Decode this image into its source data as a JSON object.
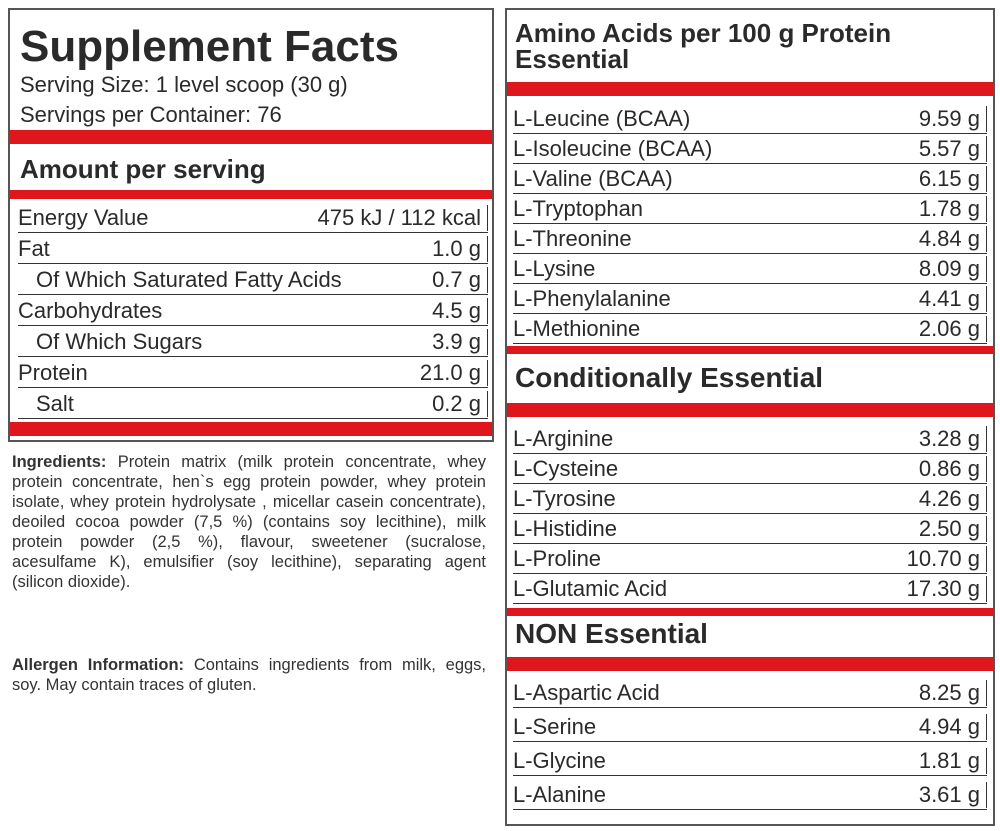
{
  "left": {
    "title": "Supplement Facts",
    "serving_size": "Serving Size: 1 level scoop (30 g)",
    "servings": "Servings per Container: 76",
    "amount_heading": "Amount per serving",
    "rows": [
      [
        "Energy Value",
        "475 kJ / 112 kcal"
      ],
      [
        "Fat",
        "1.0 g"
      ],
      [
        "Of Which Saturated Fatty Acids",
        "0.7 g"
      ],
      [
        "Carbohydrates",
        "4.5 g"
      ],
      [
        "Of Which Sugars",
        "3.9 g"
      ],
      [
        "Protein",
        "21.0 g"
      ],
      [
        "Salt",
        "0.2 g"
      ]
    ],
    "ingredients_label": "Ingredients:",
    "ingredients_text": "Protein matrix (milk protein concentrate, whey protein concentrate, hen`s egg protein powder, whey protein isolate, whey protein hydrolysate , micellar casein concentrate), deoiled cocoa powder (7,5 %) (contains soy lecithine), milk protein powder (2,5 %), flavour, sweetener (sucralose, acesulfame K), emulsifier (soy lecithine), separating agent (silicon dioxide).",
    "allergen_label": "Allergen Information:",
    "allergen_text": "Contains ingredients from milk, eggs, soy. May contain traces of gluten."
  },
  "right": {
    "title": "Amino Acids per 100 g Protein",
    "sections": [
      {
        "heading": "Essential",
        "rows": [
          [
            "L-Leucine (BCAA)",
            "9.59 g"
          ],
          [
            "L-Isoleucine (BCAA)",
            "5.57 g"
          ],
          [
            "L-Valine (BCAA)",
            "6.15 g"
          ],
          [
            "L-Tryptophan",
            "1.78 g"
          ],
          [
            "L-Threonine",
            "4.84 g"
          ],
          [
            "L-Lysine",
            "8.09 g"
          ],
          [
            "L-Phenylalanine",
            "4.41 g"
          ],
          [
            "L-Methionine",
            "2.06 g"
          ]
        ]
      },
      {
        "heading": "Conditionally Essential",
        "rows": [
          [
            "L-Arginine",
            "3.28 g"
          ],
          [
            "L-Cysteine",
            "0.86 g"
          ],
          [
            "L-Tyrosine",
            "4.26 g"
          ],
          [
            "L-Histidine",
            "2.50 g"
          ],
          [
            "L-Proline",
            "10.70 g"
          ],
          [
            "L-Glutamic Acid",
            "17.30 g"
          ]
        ]
      },
      {
        "heading": "NON Essential",
        "rows": [
          [
            "L-Aspartic Acid",
            "8.25 g"
          ],
          [
            "L-Serine",
            "4.94 g"
          ],
          [
            "L-Glycine",
            "1.81 g"
          ],
          [
            "L-Alanine",
            "3.61 g"
          ]
        ]
      }
    ]
  }
}
